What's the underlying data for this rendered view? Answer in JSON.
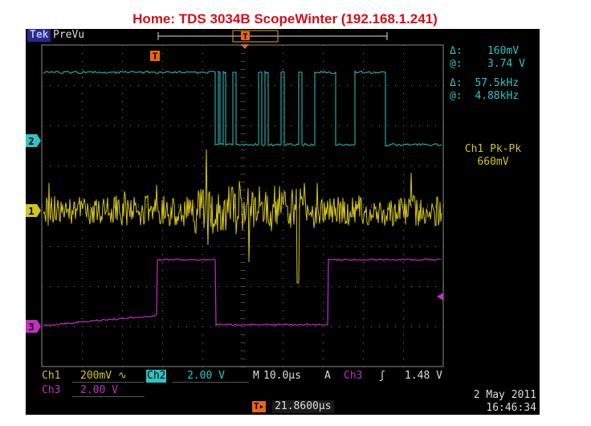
{
  "page": {
    "title": "Home:  TDS 3034B  ScopeWinter  (192.168.1.241)"
  },
  "status": {
    "logo": "Tek",
    "acq_mode": "PreVu",
    "trigger_marker": "T"
  },
  "cursors": {
    "delta_v_label": "Δ:",
    "delta_v": "160mV",
    "at_v_label": "@:",
    "at_v": "3.74 V",
    "delta_f_label": "Δ:",
    "delta_f": "57.5kHz",
    "at_f_label": "@:",
    "at_f": "4.88kHz"
  },
  "measurement": {
    "name": "Ch1 Pk-Pk",
    "value": "660mV"
  },
  "channel_markers": {
    "ch1": "1",
    "ch2": "2",
    "ch3": "3"
  },
  "settings": {
    "ch1_label": "Ch1",
    "ch1_scale": "200mV",
    "ch1_coupling": "∿",
    "ch2_label": "Ch2",
    "ch2_scale": "2.00 V",
    "time_label": "M",
    "timebase": "10.0µs",
    "trig_label": "A",
    "trig_source": "Ch3",
    "trig_slope": "ʃ",
    "trig_level": "1.48 V",
    "ch3_label": "Ch3",
    "ch3_scale": "2.00 V"
  },
  "trigger_position": {
    "icon": "T▸",
    "value": "21.8600µs"
  },
  "datetime": {
    "date": "2 May 2011",
    "time": "16:46:34"
  },
  "colors": {
    "ch1": "#d2c41c",
    "ch2": "#2ec4c4",
    "ch3": "#c42ec4",
    "trigger": "#e8661a",
    "title": "#d0101a"
  }
}
